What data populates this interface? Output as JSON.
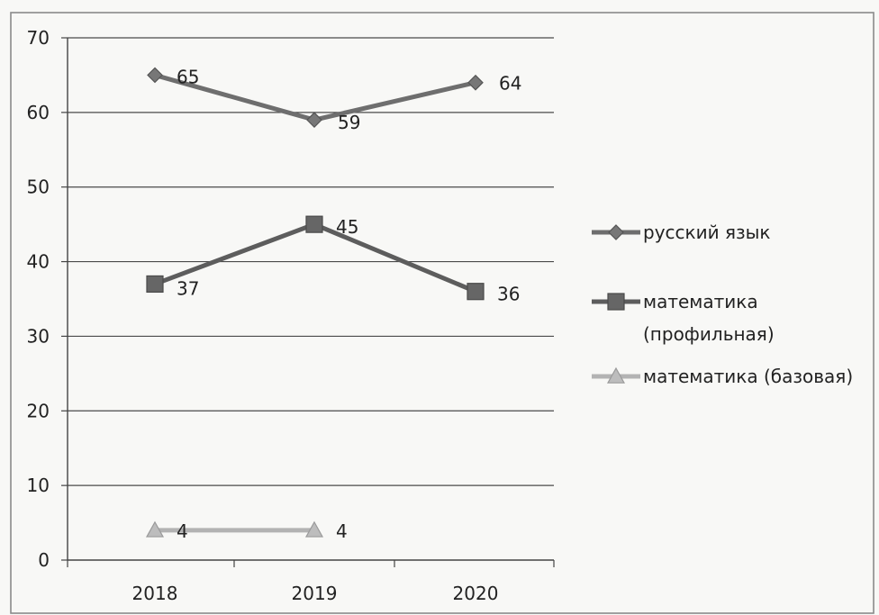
{
  "chart_data": {
    "type": "line",
    "categories": [
      "2018",
      "2019",
      "2020"
    ],
    "ylim": [
      0,
      70
    ],
    "yticks": [
      "0",
      "10",
      "20",
      "30",
      "40",
      "50",
      "60",
      "70"
    ],
    "grid": true,
    "legend_position": "right",
    "series": [
      {
        "name": "русский язык",
        "name_lines": [
          "русский язык"
        ],
        "values": [
          65,
          59,
          64
        ],
        "labels": [
          "65",
          "59",
          "64"
        ],
        "marker": "diamond",
        "color": "#6e6e6e"
      },
      {
        "name": "математика (профильная)",
        "name_lines": [
          "математика",
          "(профильная)"
        ],
        "values": [
          37,
          45,
          36
        ],
        "labels": [
          "37",
          "45",
          "36"
        ],
        "marker": "square",
        "color": "#5d5d5d"
      },
      {
        "name": "математика (базовая)",
        "name_lines": [
          "математика (базовая)"
        ],
        "values": [
          4,
          4,
          null
        ],
        "labels": [
          "4",
          "4",
          null
        ],
        "marker": "triangle",
        "color": "#b3b3b3"
      }
    ]
  }
}
